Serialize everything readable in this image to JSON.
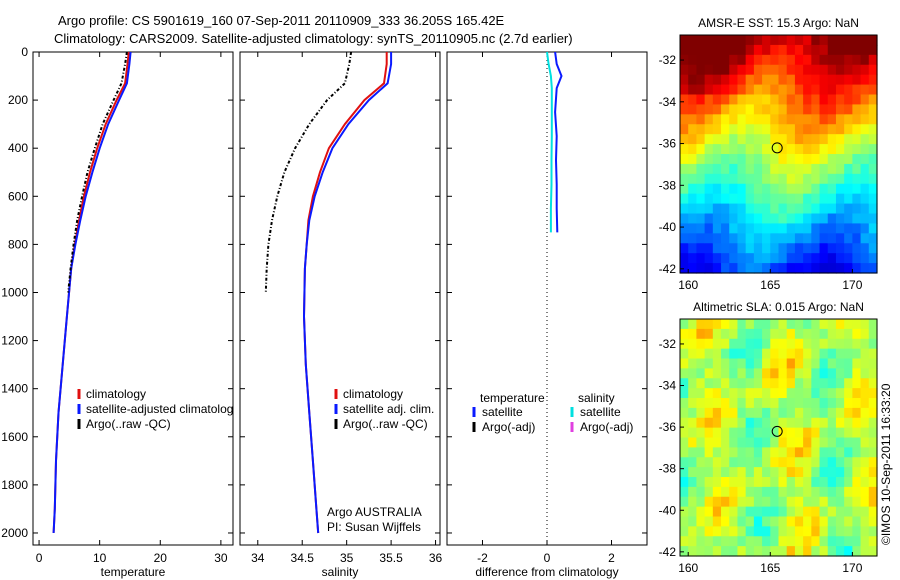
{
  "figure": {
    "title_line1": "Argo profile: CS 5901619_160 07-Sep-2011 20110909_333 36.205S 165.42E",
    "title_line2": "Climatology: CARS2009. Satellite-adjusted climatology: synTS_20110905.nc (2.7d earlier)",
    "credit": "Argo AUSTRALIA",
    "pi": "PI: Susan Wijffels",
    "imos_stamp": "©IMOS 10-Sep-2011 16:33:20"
  },
  "colors": {
    "climatology": "#e01010",
    "satellite": "#0a1aff",
    "argo": "#000000",
    "sal_satellite": "#00e0e0",
    "sal_argo": "#e040e0"
  },
  "chart_data": [
    {
      "type": "line",
      "panel": "temperature",
      "xlabel": "temperature",
      "xticks": [
        0,
        10,
        20,
        30
      ],
      "xlim": [
        -1,
        32
      ],
      "yticks": [
        0,
        200,
        400,
        600,
        800,
        1000,
        1200,
        1400,
        1600,
        1800,
        2000
      ],
      "ylim": [
        2050,
        0
      ],
      "legend": [
        "climatology",
        "satellite-adjusted climatolog",
        "Argo(..raw -QC)"
      ],
      "series": [
        {
          "name": "climatology",
          "color": "#e01010",
          "x": [
            14.8,
            14.6,
            14.2,
            12.8,
            11.0,
            9.6,
            8.4,
            7.4,
            6.6,
            5.9,
            5.3,
            4.6,
            3.9,
            3.2,
            2.8,
            2.6,
            2.4
          ],
          "y": [
            0,
            50,
            130,
            200,
            300,
            400,
            500,
            600,
            700,
            800,
            900,
            1100,
            1300,
            1500,
            1700,
            1900,
            2000
          ]
        },
        {
          "name": "satellite-adjusted climatolog",
          "color": "#0a1aff",
          "x": [
            15.1,
            14.9,
            14.5,
            13.2,
            11.4,
            10.0,
            8.8,
            7.7,
            6.8,
            6.0,
            5.3,
            4.6,
            3.9,
            3.2,
            2.8,
            2.6,
            2.4
          ],
          "y": [
            0,
            50,
            130,
            200,
            300,
            400,
            500,
            600,
            700,
            800,
            900,
            1100,
            1300,
            1500,
            1700,
            1900,
            2000
          ]
        },
        {
          "name": "Argo(..raw -QC)",
          "color": "#000000",
          "x": [
            14.5,
            14.2,
            13.6,
            12.3,
            10.5,
            9.2,
            8.0,
            7.1,
            6.3,
            5.7,
            5.2,
            4.8
          ],
          "y": [
            0,
            50,
            130,
            200,
            300,
            400,
            500,
            600,
            700,
            800,
            900,
            1000
          ]
        }
      ]
    },
    {
      "type": "line",
      "panel": "salinity",
      "xlabel": "salinity",
      "xticks": [
        34,
        34.5,
        35,
        35.5,
        36
      ],
      "xlim": [
        33.8,
        36.05
      ],
      "ylim": [
        2050,
        0
      ],
      "legend": [
        "climatology",
        "satellite adj. clim.",
        "Argo(..raw -QC)"
      ],
      "series": [
        {
          "name": "climatology",
          "color": "#e01010",
          "x": [
            35.45,
            35.45,
            35.42,
            35.2,
            34.98,
            34.8,
            34.7,
            34.62,
            34.57,
            34.55,
            34.53,
            34.52,
            34.54,
            34.58,
            34.62,
            34.66,
            34.68
          ],
          "y": [
            0,
            50,
            130,
            200,
            300,
            400,
            500,
            600,
            700,
            800,
            900,
            1100,
            1300,
            1500,
            1700,
            1900,
            2000
          ]
        },
        {
          "name": "satellite adj. clim.",
          "color": "#0a1aff",
          "x": [
            35.5,
            35.5,
            35.46,
            35.25,
            35.02,
            34.84,
            34.73,
            34.64,
            34.58,
            34.55,
            34.53,
            34.52,
            34.54,
            34.58,
            34.62,
            34.66,
            34.68
          ],
          "y": [
            0,
            50,
            130,
            200,
            300,
            400,
            500,
            600,
            700,
            800,
            900,
            1100,
            1300,
            1500,
            1700,
            1900,
            2000
          ]
        },
        {
          "name": "Argo(..raw -QC)",
          "color": "#000000",
          "x": [
            35.05,
            35.03,
            34.98,
            34.78,
            34.58,
            34.42,
            34.3,
            34.22,
            34.16,
            34.12,
            34.1,
            34.09
          ],
          "y": [
            0,
            50,
            130,
            200,
            300,
            400,
            500,
            600,
            700,
            800,
            900,
            1000
          ]
        }
      ]
    },
    {
      "type": "line",
      "panel": "difference",
      "xlabel": "difference from climatology",
      "xticks": [
        -2,
        0,
        2
      ],
      "xlim": [
        -3.1,
        3.1
      ],
      "ylim": [
        2050,
        0
      ],
      "legend_headers": [
        "temperature",
        "salinity"
      ],
      "legend": [
        "satellite",
        "Argo(-adj)",
        "satellite",
        "Argo(-adj)"
      ],
      "series": [
        {
          "name": "satellite",
          "group": "temperature",
          "color": "#0a1aff",
          "x": [
            0.25,
            0.3,
            0.45,
            0.3,
            0.25,
            0.3,
            0.28,
            0.3,
            0.3,
            0.32
          ],
          "y": [
            0,
            50,
            100,
            150,
            250,
            350,
            450,
            550,
            650,
            750
          ]
        },
        {
          "name": "satellite",
          "group": "salinity",
          "color": "#00e0e0",
          "x": [
            0.0,
            0.05,
            0.12,
            0.15,
            0.15,
            0.15,
            0.14,
            0.14,
            0.12,
            0.12
          ],
          "y": [
            0,
            50,
            100,
            150,
            250,
            350,
            450,
            550,
            650,
            750
          ]
        }
      ]
    },
    {
      "type": "heatmap",
      "panel": "sst-map",
      "title": "AMSR-E SST: 15.3 Argo: NaN",
      "xticks": [
        160,
        165,
        170
      ],
      "yticks": [
        -32,
        -34,
        -36,
        -38,
        -40,
        -42
      ],
      "xlim": [
        159.5,
        171.5
      ],
      "ylim": [
        -42.2,
        -30.8
      ],
      "marker": {
        "lon": 165.42,
        "lat": -36.205
      }
    },
    {
      "type": "heatmap",
      "panel": "sla-map",
      "title": "Altimetric SLA: 0.015 Argo: NaN",
      "xticks": [
        160,
        165,
        170
      ],
      "yticks": [
        -32,
        -34,
        -36,
        -38,
        -40,
        -42
      ],
      "xlim": [
        159.5,
        171.5
      ],
      "ylim": [
        -42.2,
        -30.8
      ],
      "marker": {
        "lon": 165.42,
        "lat": -36.205
      }
    }
  ]
}
